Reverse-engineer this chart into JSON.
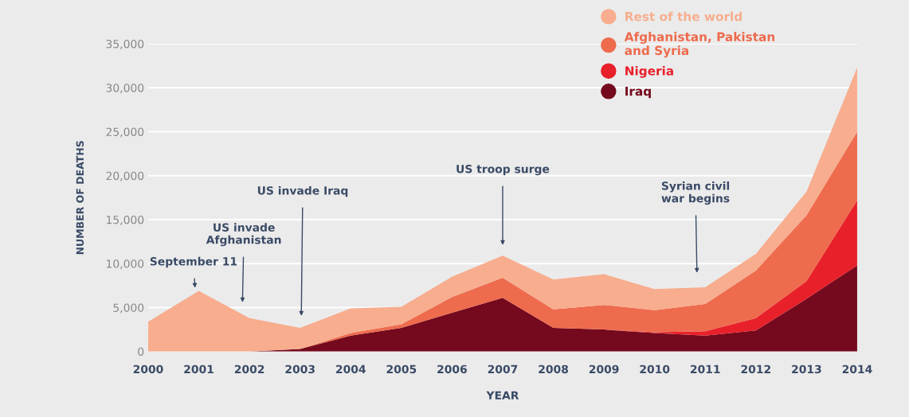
{
  "chart_data": {
    "type": "area",
    "stacked": true,
    "xlabel": "YEAR",
    "ylabel": "NUMBER OF DEATHS",
    "x": [
      2000,
      2001,
      2002,
      2003,
      2004,
      2005,
      2006,
      2007,
      2008,
      2009,
      2010,
      2011,
      2012,
      2013,
      2014
    ],
    "series": [
      {
        "name": "Iraq",
        "color": "#75091d",
        "values": [
          0,
          0,
          0,
          300,
          1800,
          2700,
          4400,
          6100,
          2700,
          2500,
          2100,
          1800,
          2400,
          6000,
          9800
        ]
      },
      {
        "name": "Nigeria",
        "color": "#e8202a",
        "values": [
          0,
          0,
          0,
          0,
          0,
          0,
          0,
          0,
          0,
          0,
          100,
          500,
          1400,
          2000,
          7400
        ]
      },
      {
        "name": "Afghanistan, Pakistan and Syria",
        "color": "#ee6b4d",
        "values": [
          0,
          0,
          0,
          0,
          300,
          400,
          1800,
          2300,
          2100,
          2800,
          2500,
          3100,
          5400,
          7500,
          7800
        ]
      },
      {
        "name": "Rest of the world",
        "color": "#f7ad8e",
        "values": [
          3400,
          6900,
          3800,
          2400,
          2800,
          2000,
          2300,
          2500,
          3400,
          3500,
          2400,
          1900,
          1900,
          2700,
          7300
        ]
      }
    ],
    "xlim": [
      2000,
      2014
    ],
    "xticks": [
      2000,
      2001,
      2002,
      2003,
      2004,
      2005,
      2006,
      2007,
      2008,
      2009,
      2010,
      2011,
      2012,
      2013,
      2014
    ],
    "ylim": [
      0,
      35000
    ],
    "yticks": [
      {
        "value": 0,
        "label": "0"
      },
      {
        "value": 5000,
        "label": "5,000"
      },
      {
        "value": 10000,
        "label": "10,000"
      },
      {
        "value": 15000,
        "label": "15,000"
      },
      {
        "value": 20000,
        "label": "20,000"
      },
      {
        "value": 25000,
        "label": "25,000"
      },
      {
        "value": 30000,
        "label": "30,000"
      },
      {
        "value": 35000,
        "label": "35,000"
      }
    ],
    "grid": "y",
    "legend": "top right",
    "annotations": [
      "September 11",
      "US invade\nAfghanistan",
      "US invade Iraq",
      "US troop surge",
      "Syrian civil\nwar begins"
    ]
  }
}
